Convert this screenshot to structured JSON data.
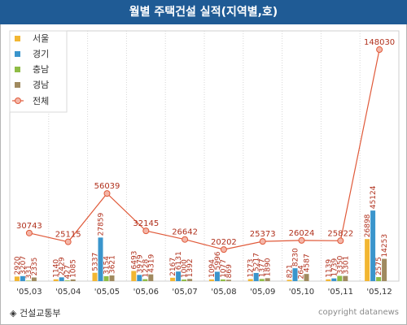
{
  "header": {
    "title": "월별 주택건설 실적(지역별,호)"
  },
  "footer": {
    "source": "◈ 건설교통부",
    "copyright": "copyright datanews"
  },
  "chart_data": {
    "type": "bar",
    "categories": [
      "'05,03",
      "'05,04",
      "'05,05",
      "'05,06",
      "'05,07",
      "'05,08",
      "'05,09",
      "'05,10",
      "'05,11",
      "'05,12"
    ],
    "ylim": [
      0,
      160000
    ],
    "grid": true,
    "legend_position": "top-left",
    "series": [
      {
        "name": "서울",
        "color": "#f2b632",
        "values": [
          2920,
          1140,
          5337,
          6493,
          2167,
          1094,
          1273,
          821,
          1139,
          26898
        ]
      },
      {
        "name": "경기",
        "color": "#3a95cc",
        "values": [
          3207,
          2429,
          27859,
          3979,
          6131,
          5996,
          5217,
          8230,
          1739,
          45124
        ]
      },
      {
        "name": "충남",
        "color": "#8fbc45",
        "values": [
          331,
          427,
          3154,
          1228,
          1000,
          1077,
          1377,
          264,
          3350,
          2575
        ]
      },
      {
        "name": "경남",
        "color": "#a08a5f",
        "values": [
          2335,
          1085,
          3621,
          4319,
          1392,
          869,
          1890,
          4587,
          3301,
          14253
        ]
      }
    ],
    "total": {
      "name": "전체",
      "type": "line",
      "color": "#e05a3a",
      "marker_fill": "#f4b6a8",
      "values": [
        30743,
        25115,
        56039,
        32145,
        26642,
        20202,
        25373,
        26024,
        25822,
        148030
      ]
    }
  }
}
